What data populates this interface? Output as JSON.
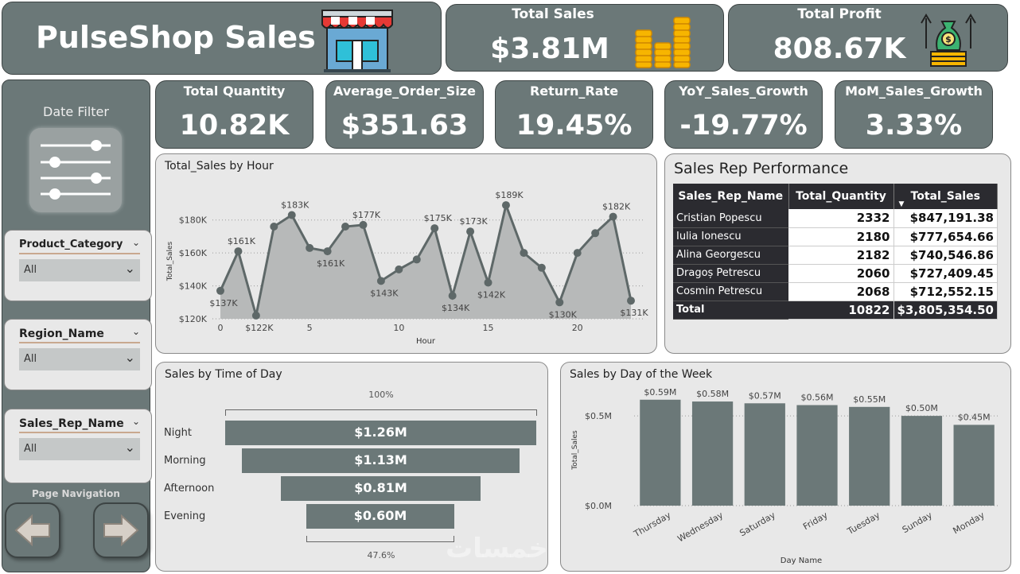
{
  "header": {
    "title": "PulseShop Sales",
    "store_icon": "storefront-icon"
  },
  "kpis_top": [
    {
      "label": "Total Sales",
      "value": "$3.81M",
      "icon": "coin-stacks-icon"
    },
    {
      "label": "Total Profit",
      "value": "808.67K",
      "icon": "money-bag-growth-icon"
    }
  ],
  "kpis": [
    {
      "label": "Total Quantity",
      "value": "10.82K"
    },
    {
      "label": "Average_Order_Size",
      "value": "$351.63"
    },
    {
      "label": "Return_Rate",
      "value": "19.45%"
    },
    {
      "label": "YoY_Sales_Growth",
      "value": "-19.77%"
    },
    {
      "label": "MoM_Sales_Growth",
      "value": "3.33%"
    }
  ],
  "sidebar": {
    "date_filter_label": "Date Filter",
    "filter_icon": "sliders-icon",
    "slicers": [
      {
        "label": "Product_Category",
        "value": "All"
      },
      {
        "label": "Region_Name",
        "value": "All"
      },
      {
        "label": "Sales_Rep_Name",
        "value": "All"
      }
    ],
    "page_nav_label": "Page Navigation",
    "back_icon": "arrow-left-icon",
    "forward_icon": "arrow-right-icon"
  },
  "hour_chart_title": "Total_Sales by Hour",
  "rep_table": {
    "title": "Sales Rep Performance",
    "columns": [
      "Sales_Rep_Name",
      "Total_Quantity",
      "Total_Sales"
    ],
    "rows": [
      [
        "Cristian Popescu",
        "2332",
        "$847,191.38"
      ],
      [
        "Iulia Ionescu",
        "2180",
        "$777,654.66"
      ],
      [
        "Alina Georgescu",
        "2182",
        "$740,546.86"
      ],
      [
        "Dragoș Petrescu",
        "2060",
        "$727,409.45"
      ],
      [
        "Cosmin Petrescu",
        "2068",
        "$712,552.15"
      ]
    ],
    "total": [
      "Total",
      "10822",
      "$3,805,354.50"
    ]
  },
  "time_of_day": {
    "title": "Sales by Time of Day",
    "top_pct": "100%",
    "bottom_pct": "47.6%",
    "stages": [
      {
        "label": "Night",
        "value": "$1.26M"
      },
      {
        "label": "Morning",
        "value": "$1.13M"
      },
      {
        "label": "Afternoon",
        "value": "$0.81M"
      },
      {
        "label": "Evening",
        "value": "$0.60M"
      }
    ]
  },
  "day_chart_title": "Sales by Day of the Week",
  "watermark": "خمسات",
  "chart_data": [
    {
      "type": "area",
      "title": "Total_Sales by Hour",
      "xlabel": "Hour",
      "ylabel": "Total_Sales",
      "x": [
        0,
        1,
        2,
        3,
        4,
        5,
        6,
        7,
        8,
        9,
        10,
        11,
        12,
        13,
        14,
        15,
        16,
        17,
        18,
        19,
        20,
        21,
        22,
        23
      ],
      "values": [
        137,
        161,
        122,
        176,
        183,
        163,
        161,
        176,
        177,
        143,
        150,
        156,
        175,
        134,
        173,
        142,
        189,
        160,
        151,
        130,
        160,
        172,
        182,
        131
      ],
      "unit": "K",
      "data_labels": {
        "0": "$137K",
        "1": "$161K",
        "2": "$122K",
        "4": "$183K",
        "6": "$161K",
        "8": "$177K",
        "9": "$143K",
        "12": "$175K",
        "13": "$134K",
        "14": "$173K",
        "15": "$142K",
        "16": "$189K",
        "19": "$130K",
        "22": "$182K",
        "23": "$131K"
      },
      "ylim": [
        120,
        190
      ],
      "yticks": [
        120,
        140,
        160,
        180
      ],
      "ytick_labels": [
        "$120K",
        "$140K",
        "$160K",
        "$180K"
      ],
      "xticks": [
        0,
        5,
        10,
        15,
        20
      ],
      "grid": true
    },
    {
      "type": "bar",
      "title": "Sales by Day of the Week",
      "xlabel": "Day Name",
      "ylabel": "Total_Sales",
      "categories": [
        "Thursday",
        "Wednesday",
        "Saturday",
        "Friday",
        "Tuesday",
        "Sunday",
        "Monday"
      ],
      "values": [
        0.59,
        0.58,
        0.57,
        0.56,
        0.55,
        0.5,
        0.45
      ],
      "data_labels": [
        "$0.59M",
        "$0.58M",
        "$0.57M",
        "$0.56M",
        "$0.55M",
        "$0.50M",
        "$0.45M"
      ],
      "ylim": [
        0,
        0.62
      ],
      "yticks": [
        0,
        0.5
      ],
      "ytick_labels": [
        "$0.0M",
        "$0.5M"
      ],
      "grid": true
    },
    {
      "type": "bar",
      "title": "Sales by Time of Day",
      "categories": [
        "Night",
        "Morning",
        "Afternoon",
        "Evening"
      ],
      "values": [
        1.26,
        1.13,
        0.81,
        0.6
      ],
      "unit": "M"
    }
  ]
}
